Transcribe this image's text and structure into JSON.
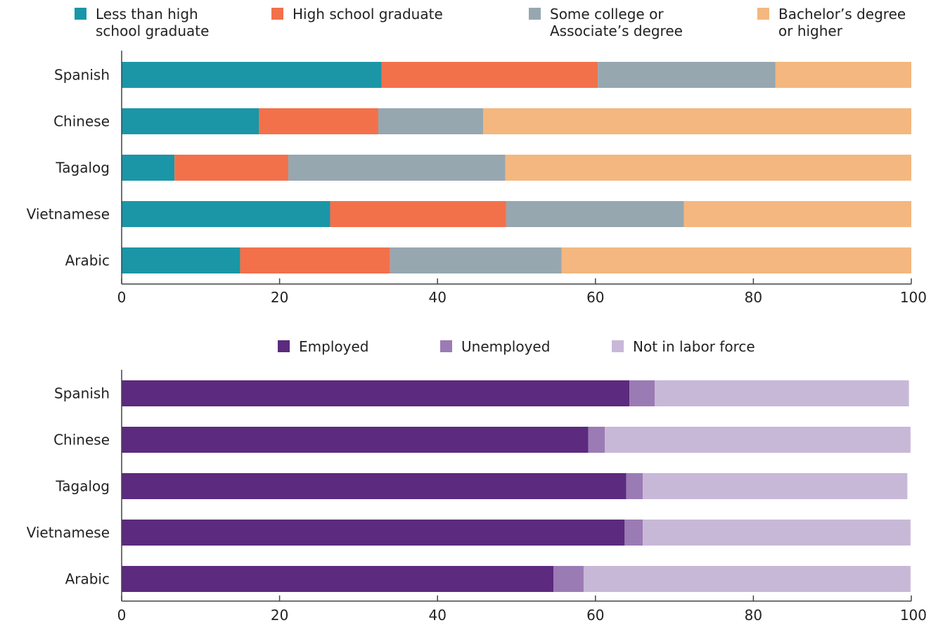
{
  "chart_data": [
    {
      "type": "bar",
      "orientation": "horizontal",
      "stacked": true,
      "categories": [
        "Spanish",
        "Chinese",
        "Tagalog",
        "Vietnamese",
        "Arabic"
      ],
      "series": [
        {
          "name": "Less than high school graduate",
          "legend_lines": [
            "Less than high",
            "school graduate"
          ],
          "color": "#1a96a7",
          "values": [
            32.9,
            17.4,
            6.7,
            26.4,
            15.0
          ]
        },
        {
          "name": "High school graduate",
          "legend_lines": [
            "High school graduate"
          ],
          "color": "#f2714a",
          "values": [
            27.4,
            15.1,
            14.4,
            22.3,
            19.0
          ]
        },
        {
          "name": "Some college or Associate’s degree",
          "legend_lines": [
            "Some college or",
            "Associate’s degree"
          ],
          "color": "#97a7b0",
          "values": [
            22.5,
            13.3,
            27.5,
            22.5,
            21.7
          ]
        },
        {
          "name": "Bachelor’s degree or higher",
          "legend_lines": [
            "Bachelor’s degree",
            "or higher"
          ],
          "color": "#f4b77f",
          "values": [
            17.2,
            54.2,
            51.4,
            28.8,
            44.3
          ]
        }
      ],
      "xlim": [
        0,
        100
      ],
      "xticks": [
        0,
        20,
        40,
        60,
        80,
        100
      ],
      "legend_position": "top",
      "grid": false
    },
    {
      "type": "bar",
      "orientation": "horizontal",
      "stacked": true,
      "categories": [
        "Spanish",
        "Chinese",
        "Tagalog",
        "Vietnamese",
        "Arabic"
      ],
      "series": [
        {
          "name": "Employed",
          "legend_lines": [
            "Employed"
          ],
          "color": "#5c2a7e",
          "values": [
            64.3,
            59.1,
            63.9,
            63.7,
            54.7
          ]
        },
        {
          "name": "Unemployed",
          "legend_lines": [
            "Unemployed"
          ],
          "color": "#9b7bb4",
          "values": [
            3.2,
            2.1,
            2.1,
            2.3,
            3.8
          ]
        },
        {
          "name": "Not in labor force",
          "legend_lines": [
            "Not in labor force"
          ],
          "color": "#c8b8d8",
          "values": [
            32.2,
            38.7,
            33.5,
            33.9,
            41.4
          ]
        }
      ],
      "xlim": [
        0,
        100
      ],
      "xticks": [
        0,
        20,
        40,
        60,
        80,
        100
      ],
      "legend_position": "top",
      "grid": false
    }
  ]
}
